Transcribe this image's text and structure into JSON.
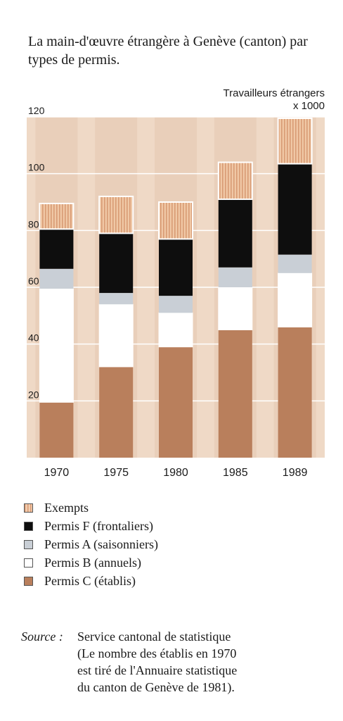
{
  "title": "La main-d'œuvre étrangère à Genève (canton) par types de permis.",
  "unit_line1": "Travailleurs étrangers",
  "unit_line2": "x 1000",
  "chart_data": {
    "type": "bar",
    "stacked": true,
    "categories": [
      "1970",
      "1975",
      "1980",
      "1985",
      "1989"
    ],
    "ylim": [
      0,
      120
    ],
    "yticks": [
      20,
      40,
      60,
      80,
      100,
      120
    ],
    "grid": true,
    "legend_position": "bottom",
    "series": [
      {
        "name": "Permis C (établis)",
        "color": "#b97f5c",
        "values": [
          19.5,
          32,
          39,
          45,
          46
        ]
      },
      {
        "name": "Permis B (annuels)",
        "color": "#ffffff",
        "values": [
          40,
          22,
          12,
          15,
          19
        ]
      },
      {
        "name": "Permis A (saisonniers)",
        "color": "#c9cfd6",
        "values": [
          7,
          4,
          6,
          7,
          6.5
        ]
      },
      {
        "name": "Permis F (frontaliers)",
        "color": "#0e0e0e",
        "values": [
          14,
          21,
          20,
          24,
          32
        ]
      },
      {
        "name": "Exempts",
        "color": "#e9b996",
        "values": [
          9,
          13,
          13,
          13,
          16
        ]
      }
    ]
  },
  "legend": [
    {
      "label": "Exempts",
      "color": "#e9b996",
      "pattern": true
    },
    {
      "label": "Permis F (frontaliers)",
      "color": "#0e0e0e"
    },
    {
      "label": "Permis A (saisonniers)",
      "color": "#c9cfd6"
    },
    {
      "label": "Permis B (annuels)",
      "color": "#ffffff"
    },
    {
      "label": "Permis C (établis)",
      "color": "#b97f5c"
    }
  ],
  "source": {
    "label": "Source :",
    "lines": [
      "Service cantonal de statistique",
      "(Le nombre des établis en 1970",
      "est tiré de l'Annuaire statistique",
      "du canton de Genève de 1981)."
    ]
  }
}
